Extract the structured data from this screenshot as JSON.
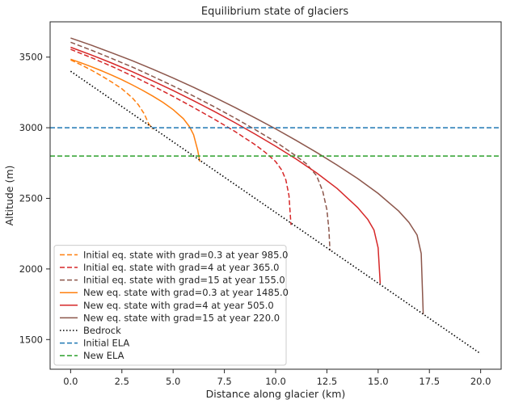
{
  "chart_data": {
    "type": "line",
    "title": "Equilibrium state of glaciers",
    "xlabel": "Distance along glacier (km)",
    "ylabel": "Altitude (m)",
    "xlim": [
      -1.0,
      21.0
    ],
    "ylim": [
      1290,
      3750
    ],
    "xticks": [
      0.0,
      2.5,
      5.0,
      7.5,
      10.0,
      12.5,
      15.0,
      17.5,
      20.0
    ],
    "xtick_labels": [
      "0.0",
      "2.5",
      "5.0",
      "7.5",
      "10.0",
      "12.5",
      "15.0",
      "17.5",
      "20.0"
    ],
    "yticks": [
      1500,
      2000,
      2500,
      3000,
      3500
    ],
    "ytick_labels": [
      "1500",
      "2000",
      "2500",
      "3000",
      "3500"
    ],
    "grid": false,
    "legend_position": "lower-left",
    "series": [
      {
        "name": "Initial eq. state with grad=0.3 at year 985.0",
        "color": "#ff7f0e",
        "style": "dashed",
        "x": [
          0.0,
          0.5,
          1.0,
          1.5,
          2.0,
          2.5,
          3.0,
          3.3,
          3.6,
          3.8,
          4.0
        ],
        "y": [
          3480,
          3446,
          3409,
          3368,
          3324,
          3276,
          3213,
          3163,
          3096,
          3030,
          2990
        ]
      },
      {
        "name": "Initial eq. state with grad=4 at year 365.0",
        "color": "#d62728",
        "style": "dashed",
        "x": [
          0.0,
          1.0,
          2.0,
          3.0,
          4.0,
          5.0,
          6.0,
          7.0,
          8.0,
          9.0,
          9.5,
          10.0,
          10.3,
          10.5,
          10.65,
          10.75
        ],
        "y": [
          3555,
          3497,
          3435,
          3368,
          3297,
          3222,
          3143,
          3061,
          2975,
          2880,
          2825,
          2760,
          2700,
          2630,
          2520,
          2312
        ]
      },
      {
        "name": "Initial eq. state with grad=15 at year 155.0",
        "color": "#8c564b",
        "style": "dashed",
        "x": [
          0.0,
          1.0,
          2.0,
          3.0,
          4.0,
          5.0,
          6.0,
          7.0,
          8.0,
          9.0,
          10.0,
          11.0,
          11.5,
          12.0,
          12.3,
          12.5,
          12.6,
          12.65
        ],
        "y": [
          3605,
          3550,
          3491,
          3430,
          3364,
          3296,
          3224,
          3149,
          3070,
          2987,
          2900,
          2800,
          2745,
          2660,
          2550,
          2420,
          2280,
          2130
        ]
      },
      {
        "name": "New eq. state with grad=0.3 at year 1485.0",
        "color": "#ff7f0e",
        "style": "solid",
        "x": [
          0.0,
          0.5,
          1.0,
          1.5,
          2.0,
          2.5,
          3.0,
          3.5,
          4.0,
          4.5,
          5.0,
          5.5,
          5.8,
          6.0,
          6.2,
          6.3
        ],
        "y": [
          3485,
          3460,
          3433,
          3404,
          3373,
          3340,
          3304,
          3266,
          3225,
          3180,
          3128,
          3064,
          3007,
          2950,
          2840,
          2760
        ]
      },
      {
        "name": "New eq. state with grad=4 at year 505.0",
        "color": "#d62728",
        "style": "solid",
        "x": [
          0.0,
          1.0,
          2.0,
          3.0,
          4.0,
          5.0,
          6.0,
          7.0,
          8.0,
          9.0,
          10.0,
          11.0,
          12.0,
          13.0,
          14.0,
          14.5,
          14.8,
          15.0,
          15.1
        ],
        "y": [
          3570,
          3516,
          3458,
          3397,
          3332,
          3263,
          3191,
          3116,
          3037,
          2955,
          2869,
          2778,
          2680,
          2570,
          2435,
          2350,
          2275,
          2150,
          1897
        ]
      },
      {
        "name": "New eq. state with grad=15 at year 220.0",
        "color": "#8c564b",
        "style": "solid",
        "x": [
          0.0,
          1.0,
          2.0,
          3.0,
          4.0,
          5.0,
          6.0,
          7.0,
          8.0,
          9.0,
          10.0,
          11.0,
          12.0,
          13.0,
          14.0,
          15.0,
          16.0,
          16.5,
          16.9,
          17.1,
          17.2
        ],
        "y": [
          3635,
          3585,
          3531,
          3475,
          3415,
          3352,
          3286,
          3217,
          3145,
          3070,
          2992,
          2910,
          2825,
          2735,
          2640,
          2535,
          2410,
          2330,
          2240,
          2110,
          1680
        ]
      },
      {
        "name": "Bedrock",
        "color": "#000000",
        "style": "dotted",
        "x": [
          0.0,
          20.0
        ],
        "y": [
          3400,
          1400
        ]
      },
      {
        "name": "Initial ELA",
        "color": "#1f77b4",
        "style": "dashed",
        "x": [
          -1.0,
          21.0
        ],
        "y": [
          3000,
          3000
        ]
      },
      {
        "name": "New ELA",
        "color": "#2ca02c",
        "style": "dashed",
        "x": [
          -1.0,
          21.0
        ],
        "y": [
          2800,
          2800
        ]
      }
    ]
  }
}
